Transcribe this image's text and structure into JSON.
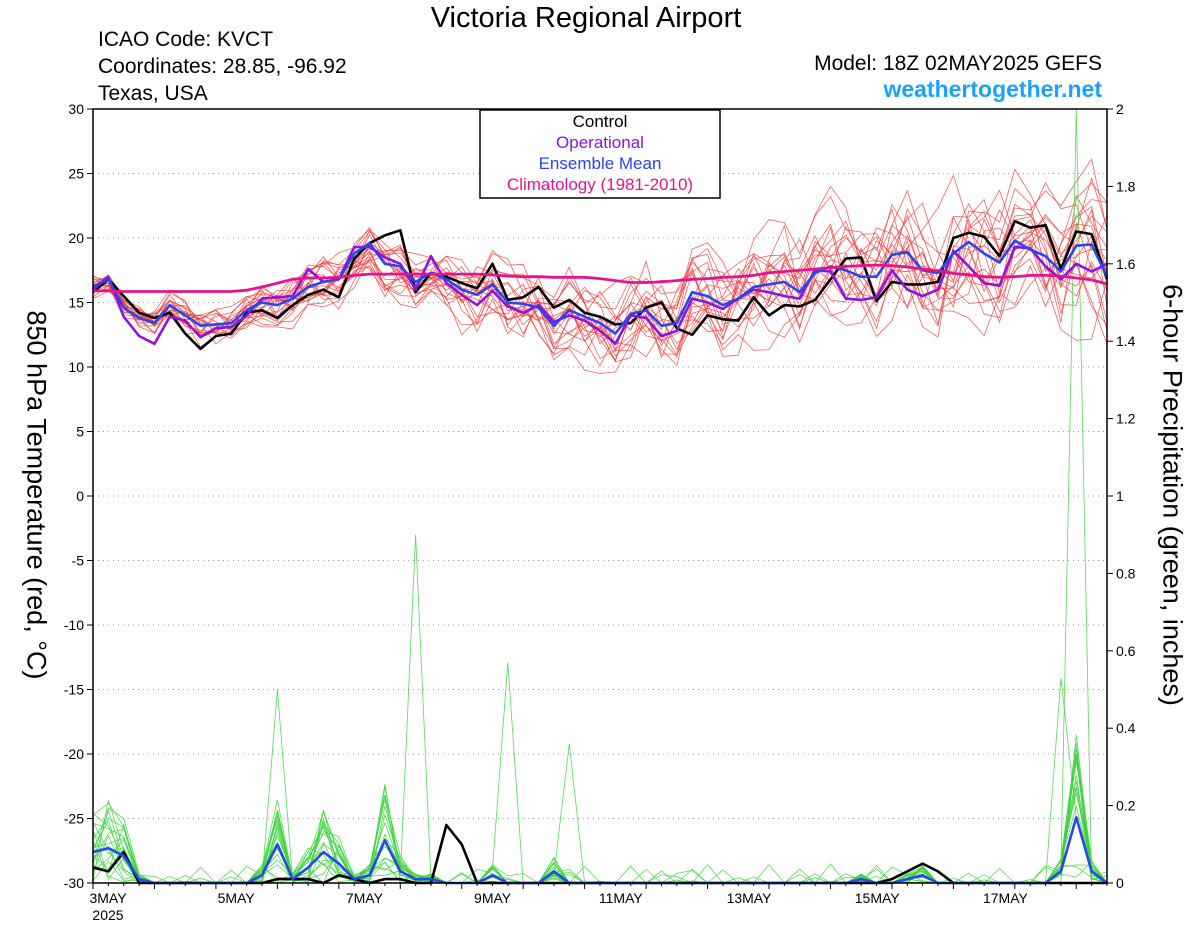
{
  "header": {
    "title": "Victoria Regional Airport",
    "icao": "ICAO Code: KVCT",
    "coordinates": "Coordinates: 28.85, -96.92",
    "region": "Texas, USA",
    "model": "Model: 18Z 02MAY2025 GEFS",
    "website": "weathertogether.net"
  },
  "chart_data": {
    "type": "line",
    "title": "Victoria Regional Airport",
    "xlabel": "",
    "ylabel": "850 hPa Temperature (red, °C)",
    "y2label": "6-hour Precipitation (green, inches)",
    "ylim": [
      -30,
      30
    ],
    "y2lim": [
      0,
      2
    ],
    "yticks": [
      30,
      25,
      20,
      15,
      10,
      5,
      0,
      -5,
      -10,
      -15,
      -20,
      -25,
      -30
    ],
    "y2ticks": [
      "2",
      "1.8",
      "1.6",
      "1.4",
      "1.2",
      "1",
      "0.8",
      "0.6",
      "0.4",
      "0.2",
      "0"
    ],
    "x_start": "3MAY 2025 00Z",
    "x_step_hours": 6,
    "xticks": [
      {
        "day": 0,
        "label": "3MAY",
        "sublabel": "2025"
      },
      {
        "day": 2,
        "label": "5MAY"
      },
      {
        "day": 4,
        "label": "7MAY"
      },
      {
        "day": 6,
        "label": "9MAY"
      },
      {
        "day": 8,
        "label": "11MAY"
      },
      {
        "day": 10,
        "label": "13MAY"
      },
      {
        "day": 12,
        "label": "15MAY"
      },
      {
        "day": 14,
        "label": "17MAY"
      }
    ],
    "grid": true,
    "legend": {
      "position": "top-center",
      "entries": [
        {
          "label": "Control",
          "color": "#000000"
        },
        {
          "label": "Operational",
          "color": "#8c14dc"
        },
        {
          "label": "Ensemble Mean",
          "color": "#2846f0"
        },
        {
          "label": "Climatology (1981-2010)",
          "color": "#e6148c"
        }
      ]
    },
    "colors": {
      "member_temp": "#f03c3c",
      "member_precip": "#3cd23c",
      "control": "#000000",
      "operational": "#8c14dc",
      "ensemble_mean": "#2846f0",
      "climatology": "#e6148c",
      "website": "#1ea0ff"
    },
    "temperature_series": [
      {
        "name": "Control",
        "values": [
          15.8,
          16.8,
          15.5,
          14.2,
          13.8,
          14.2,
          12.6,
          11.4,
          12.4,
          12.6,
          14.2,
          14.4,
          13.8,
          14.8,
          15.6,
          16.0,
          15.4,
          18.4,
          19.6,
          20.2,
          20.6,
          15.8,
          17.3,
          17.0,
          16.5,
          16.1,
          18.0,
          15.2,
          15.4,
          16.2,
          14.6,
          15.2,
          14.2,
          13.9,
          13.3,
          13.4,
          14.6,
          15.0,
          13.0,
          12.5,
          14.0,
          13.7,
          13.6,
          15.4,
          14.0,
          14.8,
          14.7,
          15.2,
          16.8,
          18.4,
          18.5,
          15.1,
          16.6,
          16.4,
          16.4,
          16.6,
          20.0,
          20.4,
          20.1,
          18.6,
          21.3,
          20.8,
          21.0,
          17.6,
          20.5,
          20.3,
          16.8
        ]
      },
      {
        "name": "Operational",
        "values": [
          16.0,
          17.0,
          13.9,
          12.4,
          11.8,
          13.9,
          13.6,
          12.3,
          13.0,
          13.1,
          14.0,
          15.3,
          15.4,
          15.5,
          17.6,
          16.6,
          16.8,
          19.3,
          19.3,
          18.5,
          18.0,
          16.0,
          18.6,
          16.5,
          15.6,
          14.8,
          15.9,
          14.7,
          14.2,
          14.8,
          13.5,
          14.0,
          13.6,
          12.8,
          11.8,
          14.0,
          13.8,
          12.4,
          12.8,
          15.3,
          15.0,
          14.5,
          15.3,
          16.0,
          15.8,
          15.5,
          15.3,
          17.5,
          17.4,
          15.3,
          15.2,
          15.4,
          17.5,
          16.0,
          15.5,
          16.0,
          19.0,
          17.8,
          16.5,
          16.3,
          19.3,
          19.2,
          17.8,
          16.8,
          18.0,
          17.4,
          18.0
        ]
      },
      {
        "name": "Ensemble Mean",
        "values": [
          16.2,
          16.8,
          14.6,
          13.8,
          13.4,
          14.8,
          14.0,
          13.2,
          13.3,
          13.4,
          14.4,
          15.0,
          14.8,
          15.3,
          16.2,
          16.6,
          16.8,
          18.8,
          19.6,
          18.0,
          17.8,
          16.6,
          17.3,
          16.8,
          16.0,
          15.6,
          16.4,
          15.0,
          14.9,
          14.6,
          13.2,
          14.4,
          13.9,
          13.4,
          12.6,
          14.1,
          14.4,
          13.2,
          13.4,
          15.8,
          15.5,
          14.8,
          15.3,
          16.2,
          16.4,
          16.6,
          15.8,
          17.3,
          17.8,
          17.5,
          17.0,
          17.0,
          18.7,
          18.9,
          17.5,
          17.3,
          18.8,
          19.7,
          18.8,
          18.1,
          19.8,
          19.1,
          18.6,
          17.4,
          19.4,
          19.5,
          17.0
        ]
      },
      {
        "name": "Climatology (1981-2010)",
        "values": [
          15.9,
          15.9,
          15.85,
          15.85,
          15.85,
          15.85,
          15.85,
          15.85,
          15.85,
          15.85,
          15.95,
          16.2,
          16.5,
          16.8,
          16.9,
          16.9,
          16.95,
          17.1,
          17.2,
          17.2,
          17.2,
          17.2,
          17.2,
          17.2,
          17.2,
          17.2,
          17.15,
          17.05,
          17.0,
          17.0,
          16.95,
          16.95,
          16.95,
          16.85,
          16.7,
          16.55,
          16.55,
          16.6,
          16.7,
          16.8,
          16.85,
          16.95,
          17.0,
          17.1,
          17.3,
          17.4,
          17.5,
          17.6,
          17.7,
          17.8,
          17.85,
          17.9,
          17.85,
          17.75,
          17.6,
          17.45,
          17.25,
          17.15,
          17.0,
          16.95,
          17.0,
          17.1,
          17.1,
          17.05,
          16.9,
          16.75,
          16.45
        ]
      }
    ],
    "precip_series": [
      {
        "name": "Control",
        "values": [
          0.04,
          0.03,
          0.08,
          0.0,
          0.0,
          0.0,
          0.0,
          0.0,
          0.0,
          0.0,
          0.0,
          0.0,
          0.01,
          0.01,
          0.01,
          0.0,
          0.02,
          0.01,
          0.0,
          0.01,
          0.01,
          0.0,
          0.0,
          0.15,
          0.1,
          0.0,
          0.0,
          0.0,
          0.0,
          0.0,
          0.0,
          0.0,
          0.0,
          0.0,
          0.0,
          0.0,
          0.0,
          0.0,
          0.0,
          0.0,
          0.0,
          0.0,
          0.0,
          0.0,
          0.0,
          0.0,
          0.0,
          0.0,
          0.0,
          0.0,
          0.0,
          0.0,
          0.01,
          0.03,
          0.05,
          0.03,
          0.0,
          0.0,
          0.0,
          0.0,
          0.0,
          0.0,
          0.0,
          0.0,
          0.0,
          0.0,
          0.0
        ]
      },
      {
        "name": "Ensemble Mean",
        "values": [
          0.08,
          0.09,
          0.07,
          0.01,
          0.0,
          0.0,
          0.0,
          0.0,
          0.0,
          0.0,
          0.0,
          0.02,
          0.1,
          0.01,
          0.04,
          0.08,
          0.05,
          0.01,
          0.02,
          0.11,
          0.03,
          0.01,
          0.01,
          0.0,
          0.0,
          0.0,
          0.02,
          0.0,
          0.0,
          0.0,
          0.03,
          0.0,
          0.0,
          0.0,
          0.0,
          0.0,
          0.0,
          0.0,
          0.0,
          0.0,
          0.0,
          0.0,
          0.0,
          0.0,
          0.0,
          0.0,
          0.0,
          0.0,
          0.0,
          0.0,
          0.01,
          0.0,
          0.0,
          0.01,
          0.02,
          0.0,
          0.0,
          0.0,
          0.0,
          0.0,
          0.0,
          0.0,
          0.0,
          0.03,
          0.17,
          0.03,
          0.0
        ]
      }
    ]
  }
}
